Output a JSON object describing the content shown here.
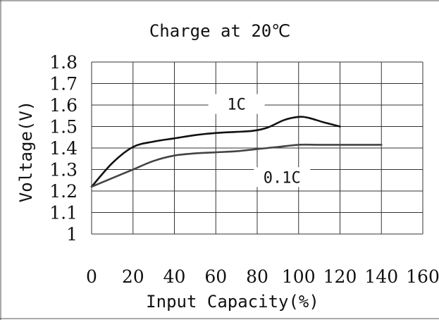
{
  "chart_data": {
    "type": "line",
    "title": "Charge at 20℃",
    "xlabel": "Input Capacity(%)",
    "ylabel": "Voltage(V)",
    "xlim": [
      0,
      160
    ],
    "ylim": [
      1,
      1.8
    ],
    "x_ticks": [
      0,
      20,
      40,
      60,
      80,
      100,
      120,
      140,
      160
    ],
    "x_tick_labels": [
      "0",
      "20",
      "40",
      "60",
      "80",
      "100",
      "120",
      "140",
      "160"
    ],
    "y_ticks": [
      1,
      1.1,
      1.2,
      1.3,
      1.4,
      1.5,
      1.6,
      1.7,
      1.8
    ],
    "y_tick_labels": [
      "1",
      "1.1",
      "1.2",
      "1.3",
      "1.4",
      "1.5",
      "1.6",
      "1.7",
      "1.8"
    ],
    "grid": true,
    "legend": "none",
    "series": [
      {
        "name": "1C",
        "color": "#111111",
        "label_anchor": {
          "x": 70,
          "y": 1.585
        },
        "x": [
          0,
          10,
          20,
          30,
          40,
          50,
          60,
          70,
          78,
          85,
          93,
          100,
          105,
          112,
          120
        ],
        "y": [
          1.22,
          1.33,
          1.405,
          1.43,
          1.445,
          1.46,
          1.47,
          1.475,
          1.48,
          1.495,
          1.53,
          1.545,
          1.54,
          1.52,
          1.5
        ]
      },
      {
        "name": "0.1C",
        "color": "#444444",
        "label_anchor": {
          "x": 92,
          "y": 1.245
        },
        "x": [
          0,
          10,
          20,
          30,
          40,
          50,
          60,
          70,
          80,
          90,
          100,
          110,
          120,
          130,
          140
        ],
        "y": [
          1.22,
          1.26,
          1.3,
          1.34,
          1.365,
          1.375,
          1.38,
          1.385,
          1.395,
          1.405,
          1.415,
          1.415,
          1.415,
          1.415,
          1.415
        ]
      }
    ]
  }
}
